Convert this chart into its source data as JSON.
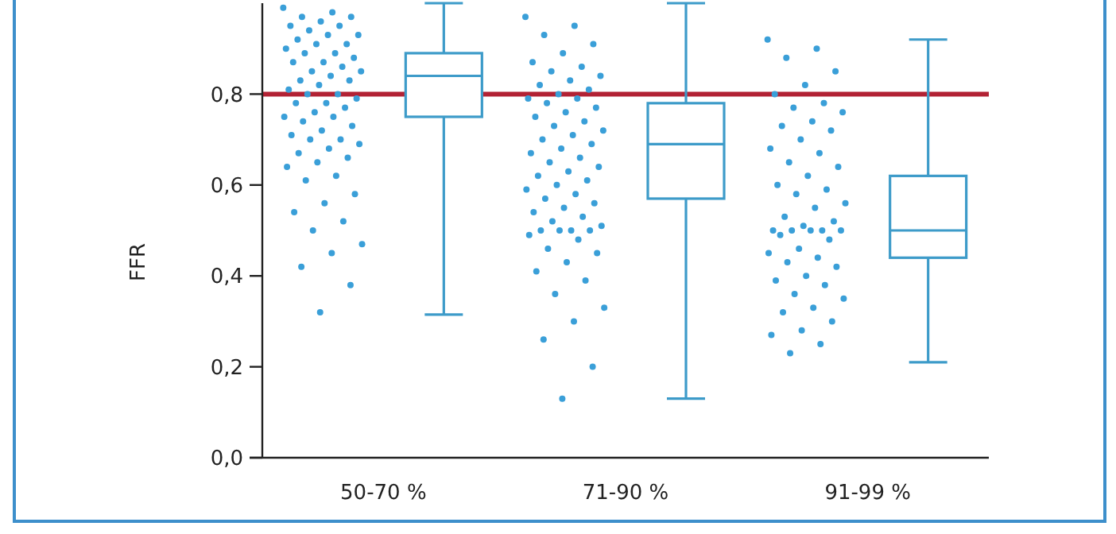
{
  "chart_data": {
    "type": "box",
    "ylabel": "FFR",
    "categories": [
      "50-70 %",
      "71-90 %",
      "91-99 %"
    ],
    "ylim": [
      0,
      1
    ],
    "yticks": [
      {
        "value": 0,
        "label": "0,0"
      },
      {
        "value": 0.2,
        "label": "0,2"
      },
      {
        "value": 0.4,
        "label": "0,4"
      },
      {
        "value": 0.6,
        "label": "0,6"
      },
      {
        "value": 0.8,
        "label": "0,8"
      }
    ],
    "ref_lines": [
      {
        "axis": "y",
        "value": 0.8,
        "color": "#b22234"
      }
    ],
    "series": [
      {
        "type": "scatter",
        "color": "#3a9fd8",
        "marker": "circle",
        "x": [
          "50-70 %",
          "50-70 %",
          "50-70 %",
          "50-70 %",
          "50-70 %",
          "50-70 %",
          "50-70 %",
          "50-70 %",
          "50-70 %",
          "50-70 %",
          "50-70 %",
          "50-70 %",
          "50-70 %",
          "50-70 %",
          "50-70 %",
          "50-70 %",
          "50-70 %",
          "50-70 %",
          "50-70 %",
          "50-70 %",
          "50-70 %",
          "50-70 %",
          "50-70 %",
          "50-70 %",
          "50-70 %",
          "50-70 %",
          "50-70 %",
          "50-70 %",
          "50-70 %",
          "50-70 %",
          "50-70 %",
          "50-70 %",
          "50-70 %",
          "50-70 %",
          "50-70 %",
          "50-70 %",
          "50-70 %",
          "50-70 %",
          "50-70 %",
          "50-70 %",
          "50-70 %",
          "50-70 %",
          "50-70 %",
          "50-70 %",
          "50-70 %",
          "50-70 %",
          "50-70 %",
          "50-70 %",
          "50-70 %",
          "50-70 %",
          "50-70 %",
          "50-70 %",
          "50-70 %",
          "50-70 %",
          "50-70 %",
          "50-70 %",
          "50-70 %",
          "50-70 %",
          "50-70 %",
          "50-70 %"
        ],
        "values": [
          0.99,
          0.98,
          0.97,
          0.97,
          0.96,
          0.95,
          0.95,
          0.94,
          0.93,
          0.93,
          0.92,
          0.91,
          0.91,
          0.9,
          0.89,
          0.89,
          0.88,
          0.87,
          0.87,
          0.86,
          0.85,
          0.85,
          0.84,
          0.83,
          0.83,
          0.82,
          0.81,
          0.8,
          0.8,
          0.79,
          0.78,
          0.78,
          0.77,
          0.76,
          0.75,
          0.75,
          0.74,
          0.73,
          0.72,
          0.71,
          0.7,
          0.7,
          0.69,
          0.68,
          0.67,
          0.66,
          0.65,
          0.64,
          0.62,
          0.61,
          0.58,
          0.56,
          0.54,
          0.52,
          0.5,
          0.47,
          0.45,
          0.42,
          0.38,
          0.32
        ]
      },
      {
        "type": "scatter",
        "color": "#3a9fd8",
        "marker": "circle",
        "x": [
          "71-90 %",
          "71-90 %",
          "71-90 %",
          "71-90 %",
          "71-90 %",
          "71-90 %",
          "71-90 %",
          "71-90 %",
          "71-90 %",
          "71-90 %",
          "71-90 %",
          "71-90 %",
          "71-90 %",
          "71-90 %",
          "71-90 %",
          "71-90 %",
          "71-90 %",
          "71-90 %",
          "71-90 %",
          "71-90 %",
          "71-90 %",
          "71-90 %",
          "71-90 %",
          "71-90 %",
          "71-90 %",
          "71-90 %",
          "71-90 %",
          "71-90 %",
          "71-90 %",
          "71-90 %",
          "71-90 %",
          "71-90 %",
          "71-90 %",
          "71-90 %",
          "71-90 %",
          "71-90 %",
          "71-90 %",
          "71-90 %",
          "71-90 %",
          "71-90 %",
          "71-90 %",
          "71-90 %",
          "71-90 %",
          "71-90 %",
          "71-90 %",
          "71-90 %",
          "71-90 %",
          "71-90 %",
          "71-90 %",
          "71-90 %",
          "71-90 %",
          "71-90 %",
          "71-90 %",
          "71-90 %",
          "71-90 %",
          "71-90 %",
          "71-90 %",
          "71-90 %",
          "71-90 %",
          "71-90 %"
        ],
        "values": [
          0.97,
          0.95,
          0.93,
          0.91,
          0.89,
          0.87,
          0.86,
          0.85,
          0.84,
          0.83,
          0.82,
          0.81,
          0.8,
          0.79,
          0.79,
          0.78,
          0.77,
          0.76,
          0.75,
          0.74,
          0.73,
          0.72,
          0.71,
          0.7,
          0.69,
          0.68,
          0.67,
          0.66,
          0.65,
          0.64,
          0.63,
          0.62,
          0.61,
          0.6,
          0.59,
          0.58,
          0.57,
          0.56,
          0.55,
          0.54,
          0.53,
          0.52,
          0.51,
          0.5,
          0.5,
          0.5,
          0.5,
          0.49,
          0.48,
          0.46,
          0.45,
          0.43,
          0.41,
          0.39,
          0.36,
          0.33,
          0.3,
          0.26,
          0.2,
          0.13
        ]
      },
      {
        "type": "scatter",
        "color": "#3a9fd8",
        "marker": "circle",
        "x": [
          "91-99 %",
          "91-99 %",
          "91-99 %",
          "91-99 %",
          "91-99 %",
          "91-99 %",
          "91-99 %",
          "91-99 %",
          "91-99 %",
          "91-99 %",
          "91-99 %",
          "91-99 %",
          "91-99 %",
          "91-99 %",
          "91-99 %",
          "91-99 %",
          "91-99 %",
          "91-99 %",
          "91-99 %",
          "91-99 %",
          "91-99 %",
          "91-99 %",
          "91-99 %",
          "91-99 %",
          "91-99 %",
          "91-99 %",
          "91-99 %",
          "91-99 %",
          "91-99 %",
          "91-99 %",
          "91-99 %",
          "91-99 %",
          "91-99 %",
          "91-99 %",
          "91-99 %",
          "91-99 %",
          "91-99 %",
          "91-99 %",
          "91-99 %",
          "91-99 %",
          "91-99 %",
          "91-99 %",
          "91-99 %",
          "91-99 %",
          "91-99 %",
          "91-99 %",
          "91-99 %",
          "91-99 %",
          "91-99 %",
          "91-99 %"
        ],
        "values": [
          0.92,
          0.9,
          0.88,
          0.85,
          0.82,
          0.8,
          0.78,
          0.77,
          0.76,
          0.74,
          0.73,
          0.72,
          0.7,
          0.68,
          0.67,
          0.65,
          0.64,
          0.62,
          0.6,
          0.59,
          0.58,
          0.56,
          0.55,
          0.53,
          0.52,
          0.51,
          0.5,
          0.5,
          0.5,
          0.5,
          0.5,
          0.49,
          0.48,
          0.46,
          0.45,
          0.44,
          0.43,
          0.42,
          0.4,
          0.39,
          0.38,
          0.36,
          0.35,
          0.33,
          0.32,
          0.3,
          0.28,
          0.27,
          0.25,
          0.23
        ]
      },
      {
        "type": "box",
        "color": "#3d9bc9",
        "boxes": [
          {
            "low": 0.315,
            "q1": 0.75,
            "median": 0.84,
            "q3": 0.89,
            "high": 1.0
          },
          {
            "low": 0.13,
            "q1": 0.57,
            "median": 0.69,
            "q3": 0.78,
            "high": 1.0
          },
          {
            "low": 0.21,
            "q1": 0.44,
            "median": 0.5,
            "q3": 0.62,
            "high": 0.92
          }
        ]
      }
    ]
  }
}
